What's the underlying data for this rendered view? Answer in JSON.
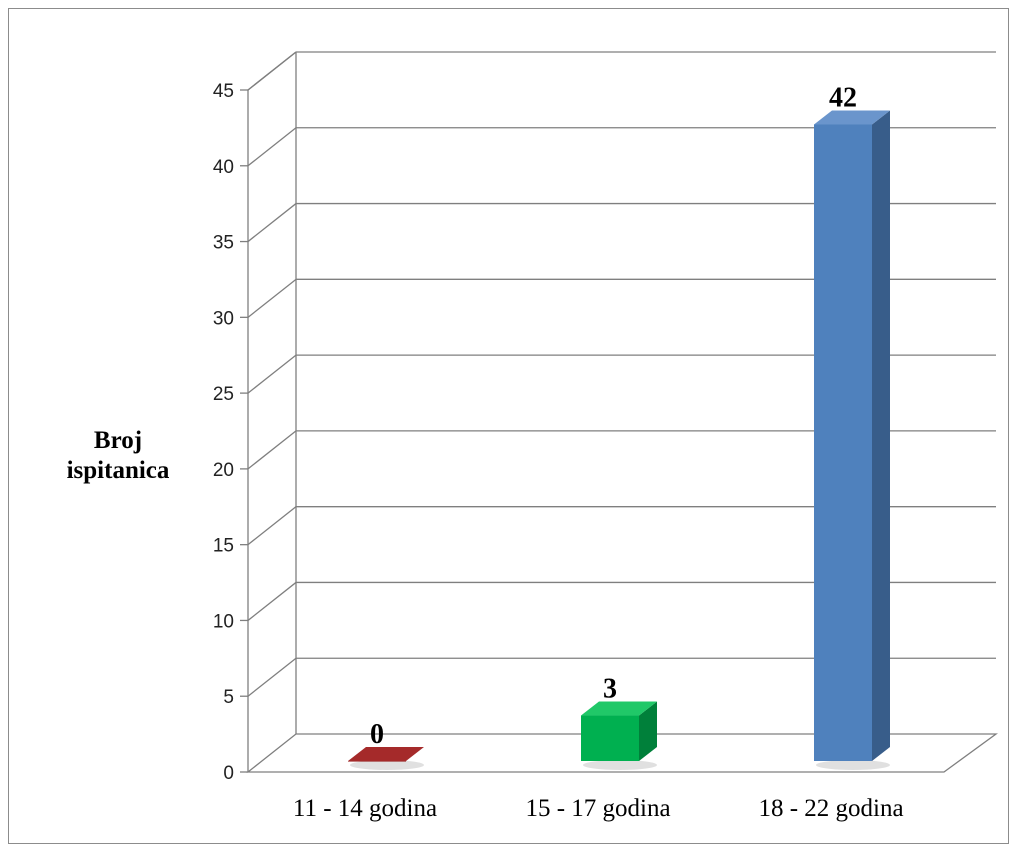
{
  "chart_data": {
    "type": "bar",
    "categories": [
      "11 - 14 godina",
      "15 - 17 godina",
      "18 - 22 godina"
    ],
    "values": [
      0,
      3,
      42
    ],
    "data_labels": [
      "0",
      "3",
      "42"
    ],
    "xlabel": "",
    "ylabel": [
      "Broj",
      "ispitanica"
    ],
    "ylim": [
      0,
      45
    ],
    "yticks": [
      "0",
      "5",
      "10",
      "15",
      "20",
      "25",
      "30",
      "35",
      "40",
      "45"
    ],
    "grid": true,
    "style": "3d-column",
    "colors": {
      "bars": [
        "#8b0000",
        "#00b050",
        "#4f81bd"
      ],
      "bars_side": [
        "#5a0000",
        "#00803a",
        "#385d8a"
      ],
      "bars_top": [
        "#a52a2a",
        "#20c868",
        "#6a95cc"
      ],
      "grid": "#7f7f7f"
    }
  }
}
